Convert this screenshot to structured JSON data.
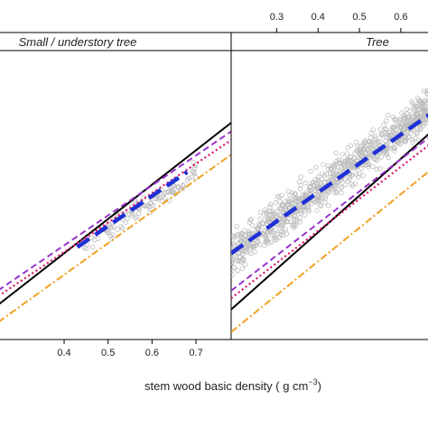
{
  "colors": {
    "points": "#bdbdbd",
    "strip_bg": "#ffffff",
    "frame": "#000000",
    "black_line": "#000000",
    "blue_line": "#1f2fd6",
    "purple_line": "#9932cc",
    "red_line": "#e0106a",
    "orange_line": "#f0a020"
  },
  "chart_data": {
    "type": "scatter",
    "x_label_main": "stem wood basic density ( g cm",
    "x_label_sup": "−3",
    "x_label_tail": ")",
    "xlim": [
      0.25,
      0.78
    ],
    "ylim": [
      0,
      1
    ],
    "panels": [
      {
        "strip": "Small / understory tree",
        "bottom_ticks": [
          "0.4",
          "0.5",
          "0.6",
          "0.7"
        ],
        "bottom_tick_values": [
          0.4,
          0.5,
          0.6,
          0.7
        ],
        "series": [
          {
            "style": "solid",
            "color_key": "black_line",
            "x": [
              0.25,
              0.78
            ],
            "y": [
              0.12,
              0.75
            ]
          },
          {
            "style": "dashed",
            "color_key": "purple_line",
            "x": [
              0.25,
              0.78
            ],
            "y": [
              0.17,
              0.72
            ]
          },
          {
            "style": "dotted",
            "color_key": "red_line",
            "x": [
              0.25,
              0.78
            ],
            "y": [
              0.15,
              0.69
            ]
          },
          {
            "style": "dashdot",
            "color_key": "orange_line",
            "x": [
              0.25,
              0.78
            ],
            "y": [
              0.06,
              0.64
            ]
          },
          {
            "style": "longdash",
            "color_key": "blue_line",
            "x": [
              0.43,
              0.68
            ],
            "y": [
              0.32,
              0.58
            ]
          }
        ],
        "points": {
          "n": 120,
          "x_range": [
            0.44,
            0.7
          ],
          "slope": 1.0,
          "intercept": -0.12,
          "spread": 0.06
        }
      },
      {
        "strip": "Tree",
        "top_ticks": [
          "0.3",
          "0.4",
          "0.5",
          "0.6"
        ],
        "top_tick_values": [
          0.3,
          0.4,
          0.5,
          0.6
        ],
        "series": [
          {
            "style": "solid",
            "color_key": "black_line",
            "x": [
              0.19,
              0.67
            ],
            "y": [
              0.03,
              0.5
            ]
          },
          {
            "style": "dashed",
            "color_key": "purple_line",
            "x": [
              0.19,
              0.67
            ],
            "y": [
              0.08,
              0.49
            ]
          },
          {
            "style": "dotted",
            "color_key": "red_line",
            "x": [
              0.19,
              0.67
            ],
            "y": [
              0.06,
              0.47
            ]
          },
          {
            "style": "dashdot",
            "color_key": "orange_line",
            "x": [
              0.19,
              0.67
            ],
            "y": [
              -0.03,
              0.4
            ]
          },
          {
            "style": "longdash",
            "color_key": "blue_line",
            "x": [
              0.19,
              0.67
            ],
            "y": [
              0.18,
              0.55
            ]
          }
        ],
        "xlim": [
          0.19,
          0.67
        ],
        "ylim": [
          -0.05,
          0.72
        ],
        "points": {
          "n": 900,
          "x_range": [
            0.19,
            0.67
          ],
          "slope": 0.82,
          "intercept": 0.02,
          "spread": 0.09
        }
      }
    ]
  }
}
